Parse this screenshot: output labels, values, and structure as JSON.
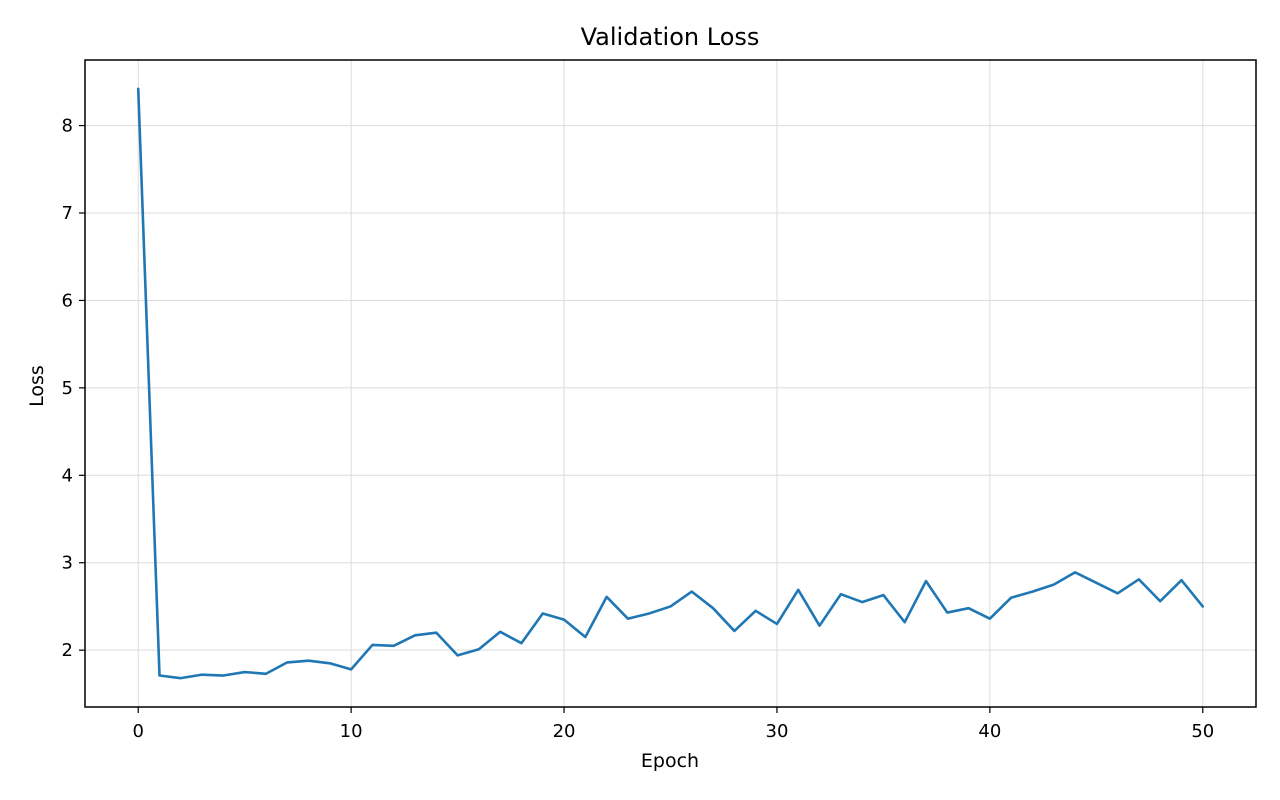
{
  "chart_data": {
    "type": "line",
    "title": "Validation Loss",
    "xlabel": "Epoch",
    "ylabel": "Loss",
    "xlim": [
      -2.5,
      52.5
    ],
    "ylim": [
      1.35,
      8.75
    ],
    "xticks": [
      0,
      10,
      20,
      30,
      40,
      50
    ],
    "yticks": [
      2,
      3,
      4,
      5,
      6,
      7,
      8
    ],
    "grid": true,
    "legend": "none",
    "series": [
      {
        "color": "#1f77b4",
        "x": [
          0,
          1,
          2,
          3,
          4,
          5,
          6,
          7,
          8,
          9,
          10,
          11,
          12,
          13,
          14,
          15,
          16,
          17,
          18,
          19,
          20,
          21,
          22,
          23,
          24,
          25,
          26,
          27,
          28,
          29,
          30,
          31,
          32,
          33,
          34,
          35,
          36,
          37,
          38,
          39,
          40,
          41,
          42,
          43,
          44,
          45,
          46,
          47,
          48,
          49,
          50
        ],
        "y": [
          8.42,
          1.71,
          1.68,
          1.72,
          1.71,
          1.75,
          1.73,
          1.86,
          1.88,
          1.85,
          1.78,
          2.06,
          2.05,
          2.17,
          2.2,
          1.94,
          2.01,
          2.21,
          2.08,
          2.42,
          2.35,
          2.15,
          2.61,
          2.36,
          2.42,
          2.5,
          2.67,
          2.48,
          2.22,
          2.45,
          2.3,
          2.69,
          2.28,
          2.64,
          2.55,
          2.63,
          2.32,
          2.79,
          2.43,
          2.48,
          2.36,
          2.6,
          2.67,
          2.75,
          2.89,
          2.77,
          2.65,
          2.81,
          2.56,
          2.8,
          2.5
        ]
      }
    ]
  }
}
